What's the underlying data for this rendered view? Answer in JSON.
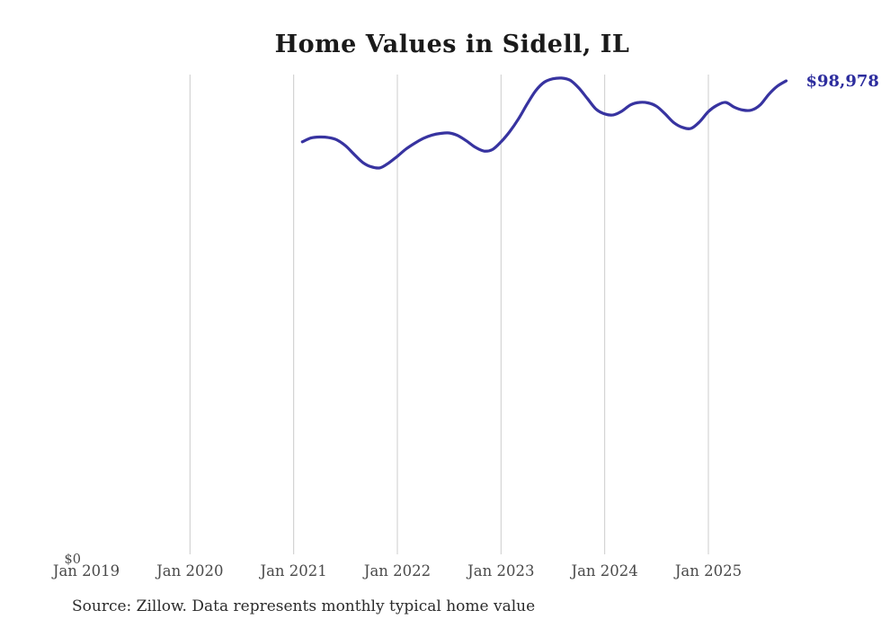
{
  "page": {
    "title": "Home Values in Sidell, IL",
    "source_note": "Source: Zillow. Data represents monthly typical home value"
  },
  "chart_data": {
    "type": "line",
    "title": "Home Values in Sidell, IL",
    "xlabel": "",
    "ylabel": "",
    "x_ticks": [
      "Jan 2019",
      "Jan 2020",
      "Jan 2021",
      "Jan 2022",
      "Jan 2023",
      "Jan 2024",
      "Jan 2025"
    ],
    "x_range_months": [
      "2019-01",
      "2025-12"
    ],
    "y_axis": {
      "zero_label": "$0",
      "zero_value": 0,
      "max_plotted_value": 99550
    },
    "end_label": "$98,978",
    "end_value": 98978,
    "legend": "none",
    "grid": "vertical-only, at each January from 2020 to 2025",
    "colors": {
      "line": "#3733a0",
      "end_label": "#2d2d9e",
      "gridline": "#cccccc",
      "tick_text": "#4a4a4a",
      "title_text": "#1a1a1a",
      "source_text": "#2b2b2b"
    },
    "series": [
      {
        "name": "typical_home_value",
        "points": [
          {
            "date": "2021-02",
            "value": 86300
          },
          {
            "date": "2021-03",
            "value": 87100
          },
          {
            "date": "2021-04",
            "value": 87300
          },
          {
            "date": "2021-05",
            "value": 87200
          },
          {
            "date": "2021-06",
            "value": 86700
          },
          {
            "date": "2021-07",
            "value": 85500
          },
          {
            "date": "2021-08",
            "value": 83700
          },
          {
            "date": "2021-09",
            "value": 82000
          },
          {
            "date": "2021-10",
            "value": 81100
          },
          {
            "date": "2021-11",
            "value": 80900
          },
          {
            "date": "2021-12",
            "value": 81900
          },
          {
            "date": "2022-01",
            "value": 83300
          },
          {
            "date": "2022-02",
            "value": 84800
          },
          {
            "date": "2022-03",
            "value": 86000
          },
          {
            "date": "2022-04",
            "value": 87000
          },
          {
            "date": "2022-05",
            "value": 87700
          },
          {
            "date": "2022-06",
            "value": 88050
          },
          {
            "date": "2022-07",
            "value": 88150
          },
          {
            "date": "2022-08",
            "value": 87600
          },
          {
            "date": "2022-09",
            "value": 86500
          },
          {
            "date": "2022-10",
            "value": 85200
          },
          {
            "date": "2022-11",
            "value": 84400
          },
          {
            "date": "2022-12",
            "value": 84700
          },
          {
            "date": "2023-01",
            "value": 86300
          },
          {
            "date": "2023-02",
            "value": 88400
          },
          {
            "date": "2023-03",
            "value": 91000
          },
          {
            "date": "2023-04",
            "value": 94100
          },
          {
            "date": "2023-05",
            "value": 96900
          },
          {
            "date": "2023-06",
            "value": 98700
          },
          {
            "date": "2023-07",
            "value": 99400
          },
          {
            "date": "2023-08",
            "value": 99550
          },
          {
            "date": "2023-09",
            "value": 99100
          },
          {
            "date": "2023-10",
            "value": 97500
          },
          {
            "date": "2023-11",
            "value": 95300
          },
          {
            "date": "2023-12",
            "value": 93100
          },
          {
            "date": "2024-01",
            "value": 92100
          },
          {
            "date": "2024-02",
            "value": 91900
          },
          {
            "date": "2024-03",
            "value": 92700
          },
          {
            "date": "2024-04",
            "value": 94000
          },
          {
            "date": "2024-05",
            "value": 94500
          },
          {
            "date": "2024-06",
            "value": 94400
          },
          {
            "date": "2024-07",
            "value": 93700
          },
          {
            "date": "2024-08",
            "value": 92100
          },
          {
            "date": "2024-09",
            "value": 90300
          },
          {
            "date": "2024-10",
            "value": 89300
          },
          {
            "date": "2024-11",
            "value": 89100
          },
          {
            "date": "2024-12",
            "value": 90500
          },
          {
            "date": "2025-01",
            "value": 92600
          },
          {
            "date": "2025-02",
            "value": 93900
          },
          {
            "date": "2025-03",
            "value": 94500
          },
          {
            "date": "2025-04",
            "value": 93500
          },
          {
            "date": "2025-05",
            "value": 92900
          },
          {
            "date": "2025-06",
            "value": 92900
          },
          {
            "date": "2025-07",
            "value": 94000
          },
          {
            "date": "2025-08",
            "value": 96200
          },
          {
            "date": "2025-09",
            "value": 97900
          },
          {
            "date": "2025-10",
            "value": 98978
          }
        ]
      }
    ]
  }
}
